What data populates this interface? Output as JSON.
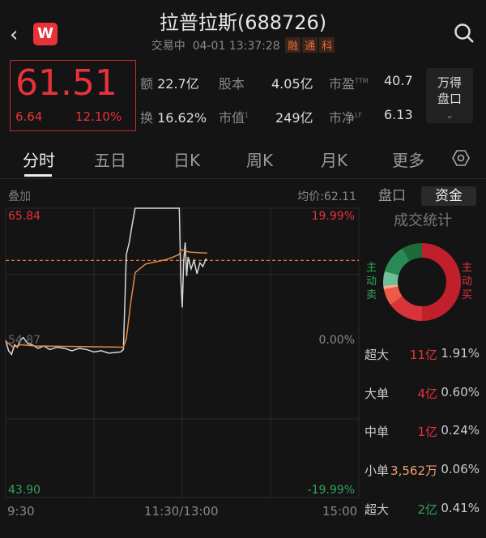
{
  "header": {
    "title": "拉普拉斯(688726)",
    "status": "交易中",
    "datetime": "04-01 13:37:28",
    "tags": [
      "融",
      "通",
      "科"
    ],
    "logo": "W",
    "back_icon": "chevron-left-icon",
    "search_icon": "search-icon"
  },
  "quote": {
    "price": "61.51",
    "change": "6.64",
    "change_pct": "12.10%",
    "stats": [
      {
        "label": "额",
        "value": "22.7亿",
        "sup": ""
      },
      {
        "label": "股本",
        "value": "4.05亿",
        "sup": ""
      },
      {
        "label": "市盈",
        "value": "40.7",
        "sup": "TTM"
      },
      {
        "label": "换",
        "value": "16.62%",
        "sup": ""
      },
      {
        "label": "市值",
        "value": "249亿",
        "sup": "1"
      },
      {
        "label": "市净",
        "value": "6.13",
        "sup": "LF"
      }
    ],
    "wind_button": [
      "万得",
      "盘口"
    ]
  },
  "tabs": [
    "分时",
    "五日",
    "日K",
    "周K",
    "月K",
    "更多"
  ],
  "active_tab": 0,
  "chart": {
    "overlay_label": "叠加",
    "avg_label": "均价:62.11",
    "top_price": "65.84",
    "mid_price": "54.87",
    "bottom_price": "43.90",
    "top_pct": "19.99%",
    "mid_pct": "0.00%",
    "bottom_pct": "-19.99%",
    "x_labels": [
      "9:30",
      "11:30/13:00",
      "15:00"
    ],
    "colors": {
      "up": "#e8323a",
      "down": "#2fa55a",
      "price_line": "#d8d8d8",
      "avg_line": "#e08a4a"
    }
  },
  "chart_data": {
    "type": "line",
    "prev_close": 54.87,
    "ylim": [
      43.9,
      65.84
    ],
    "x_unit": "trading minutes from 9:30 (0-240)",
    "series": [
      {
        "values": [
          [
            0,
            54.87
          ],
          [
            2,
            54.0
          ],
          [
            4,
            53.7
          ],
          [
            6,
            54.5
          ],
          [
            8,
            54.3
          ],
          [
            10,
            54.9
          ],
          [
            12,
            55.1
          ],
          [
            15,
            54.6
          ],
          [
            18,
            54.5
          ],
          [
            22,
            54.2
          ],
          [
            26,
            54.4
          ],
          [
            30,
            54.1
          ],
          [
            35,
            54.3
          ],
          [
            40,
            54.2
          ],
          [
            45,
            54.0
          ],
          [
            50,
            54.2
          ],
          [
            55,
            54.1
          ],
          [
            60,
            53.9
          ],
          [
            65,
            54.0
          ],
          [
            70,
            53.8
          ],
          [
            78,
            53.9
          ],
          [
            80,
            54.1
          ],
          [
            81,
            58.0
          ],
          [
            82,
            62.0
          ],
          [
            84,
            63.0
          ],
          [
            86,
            64.5
          ],
          [
            88,
            65.84
          ],
          [
            118,
            65.84
          ],
          [
            119,
            60.0
          ],
          [
            120,
            57.6
          ],
          [
            121,
            61.5
          ],
          [
            122,
            63.0
          ],
          [
            123,
            60.2
          ],
          [
            124,
            61.8
          ],
          [
            126,
            60.8
          ],
          [
            128,
            61.5
          ],
          [
            130,
            60.4
          ],
          [
            132,
            61.3
          ],
          [
            134,
            61.0
          ],
          [
            136,
            61.6
          ],
          [
            137,
            61.51
          ]
        ]
      },
      {
        "values": [
          [
            0,
            54.8
          ],
          [
            5,
            54.3
          ],
          [
            10,
            54.5
          ],
          [
            20,
            54.4
          ],
          [
            80,
            54.3
          ],
          [
            82,
            55.0
          ],
          [
            85,
            58.0
          ],
          [
            88,
            60.5
          ],
          [
            95,
            61.2
          ],
          [
            110,
            61.6
          ],
          [
            118,
            62.0
          ],
          [
            119,
            62.4
          ],
          [
            125,
            62.2
          ],
          [
            137,
            62.11
          ]
        ]
      }
    ],
    "current_price": 61.51
  },
  "side": {
    "tabs": [
      "盘口",
      "资金"
    ],
    "active": 1,
    "title": "成交统计",
    "sell_label": "主动卖",
    "buy_label": "主动买",
    "donut": [
      {
        "share": 50,
        "color": "#c01f2c"
      },
      {
        "share": 15,
        "color": "#d9343c"
      },
      {
        "share": 7,
        "color": "#ee5a48"
      },
      {
        "share": 1.5,
        "color": "#f0b090"
      },
      {
        "share": 6,
        "color": "#6cbf98"
      },
      {
        "share": 12,
        "color": "#2a8a55"
      },
      {
        "share": 8.5,
        "color": "#1d6b3a"
      }
    ],
    "rows": [
      {
        "label": "超大",
        "value": "11亿",
        "pct": "1.91%",
        "color": "#e8323a"
      },
      {
        "label": "大单",
        "value": "4亿",
        "pct": "0.60%",
        "color": "#e8323a"
      },
      {
        "label": "中单",
        "value": "1亿",
        "pct": "0.24%",
        "color": "#e8323a"
      },
      {
        "label": "小单",
        "value": "3,562万",
        "pct": "0.06%",
        "color": "#f0a070"
      },
      {
        "label": "超大",
        "value": "2亿",
        "pct": "0.41%",
        "color": "#2fa55a"
      }
    ]
  }
}
